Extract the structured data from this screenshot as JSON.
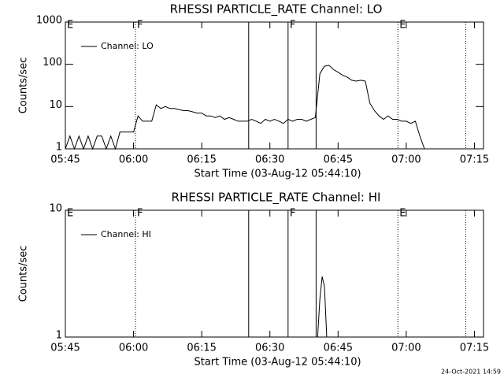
{
  "chart_data": [
    {
      "type": "line",
      "title": "RHESSI PARTICLE_RATE Channel: LO",
      "xlabel": "Start Time (03-Aug-12 05:44:10)",
      "ylabel": "Counts/sec",
      "x": [
        "05:45",
        "05:46",
        "05:47",
        "05:48",
        "05:49",
        "05:50",
        "05:51",
        "05:52",
        "05:53",
        "05:54",
        "05:55",
        "05:56",
        "05:57",
        "05:58",
        "05:59",
        "06:00",
        "06:01",
        "06:02",
        "06:03",
        "06:04",
        "06:05",
        "06:06",
        "06:07",
        "06:08",
        "06:09",
        "06:10",
        "06:11",
        "06:12",
        "06:13",
        "06:14",
        "06:15",
        "06:16",
        "06:17",
        "06:18",
        "06:19",
        "06:20",
        "06:21",
        "06:22",
        "06:23",
        "06:24",
        "06:25",
        "06:26",
        "06:27",
        "06:28",
        "06:29",
        "06:30",
        "06:31",
        "06:32",
        "06:33",
        "06:34",
        "06:35",
        "06:36",
        "06:37",
        "06:38",
        "06:39",
        "06:40",
        "06:41",
        "06:42",
        "06:43",
        "06:44",
        "06:45",
        "06:46",
        "06:47",
        "06:48",
        "06:49",
        "06:50",
        "06:51",
        "06:52",
        "06:53",
        "06:54",
        "06:55",
        "06:56",
        "06:57",
        "06:58",
        "06:59",
        "07:00",
        "07:01",
        "07:02",
        "07:03",
        "07:04"
      ],
      "series": [
        {
          "name": "Channel: LO",
          "color": "#000000",
          "values": [
            1,
            2,
            1,
            2,
            1,
            2,
            1,
            2,
            2,
            1,
            2,
            1,
            2.5,
            2.5,
            2.5,
            2.5,
            6,
            4.5,
            4.5,
            4.5,
            11,
            9,
            10,
            9,
            9,
            8.5,
            8,
            8,
            7.5,
            7,
            7,
            6,
            6,
            5.5,
            6,
            5,
            5.5,
            5,
            4.5,
            4.5,
            4.5,
            5,
            4.5,
            4,
            5,
            4.5,
            5,
            4.5,
            4,
            5,
            4.5,
            5,
            5,
            4.5,
            5,
            5.5,
            60,
            90,
            95,
            75,
            65,
            55,
            50,
            42,
            40,
            42,
            40,
            12,
            8,
            6,
            5,
            6,
            5,
            5,
            4.5,
            4.5,
            4,
            4.5,
            2,
            1
          ]
        }
      ],
      "xlim": [
        "05:45",
        "07:17"
      ],
      "xticks": [
        "05:45",
        "06:00",
        "06:15",
        "06:30",
        "06:45",
        "07:00",
        "07:15"
      ],
      "ylim": [
        1,
        1000
      ],
      "yticks": [
        1,
        10,
        100,
        1000
      ],
      "log_y": true,
      "legend": "upper left",
      "vlines": [
        {
          "x": "06:00:25",
          "style": "dotted"
        },
        {
          "x": "06:25:20",
          "style": "solid"
        },
        {
          "x": "06:34",
          "style": "solid"
        },
        {
          "x": "06:40:10",
          "style": "solid"
        },
        {
          "x": "06:58:10",
          "style": "dotted"
        },
        {
          "x": "07:13:05",
          "style": "dotted"
        }
      ],
      "annotations": [
        {
          "text": "E",
          "x": "05:45"
        },
        {
          "text": "F",
          "x": "06:00:25"
        },
        {
          "text": "F",
          "x": "06:34"
        },
        {
          "text": "E",
          "x": "06:58:10"
        }
      ]
    },
    {
      "type": "line",
      "title": "RHESSI PARTICLE_RATE Channel: HI",
      "xlabel": "Start Time (03-Aug-12 05:44:10)",
      "ylabel": "Counts/sec",
      "x": [
        "06:40:30",
        "06:41",
        "06:41:30",
        "06:42",
        "06:42:30"
      ],
      "series": [
        {
          "name": "Channel: HI",
          "color": "#000000",
          "values": [
            1,
            2,
            3,
            2.5,
            1
          ]
        }
      ],
      "xlim": [
        "05:45",
        "07:17"
      ],
      "xticks": [
        "05:45",
        "06:00",
        "06:15",
        "06:30",
        "06:45",
        "07:00",
        "07:15"
      ],
      "ylim": [
        1,
        10
      ],
      "yticks": [
        1,
        10
      ],
      "log_y": true,
      "legend": "upper left",
      "vlines": [
        {
          "x": "06:00:25",
          "style": "dotted"
        },
        {
          "x": "06:25:20",
          "style": "solid"
        },
        {
          "x": "06:34",
          "style": "solid"
        },
        {
          "x": "06:40:10",
          "style": "solid"
        },
        {
          "x": "06:58:10",
          "style": "dotted"
        },
        {
          "x": "07:13:05",
          "style": "dotted"
        }
      ],
      "annotations": [
        {
          "text": "E",
          "x": "05:45"
        },
        {
          "text": "F",
          "x": "06:00:25"
        },
        {
          "text": "F",
          "x": "06:34"
        },
        {
          "text": "E",
          "x": "06:58:10"
        }
      ]
    }
  ],
  "footer": "24-Oct-2021 14:59"
}
